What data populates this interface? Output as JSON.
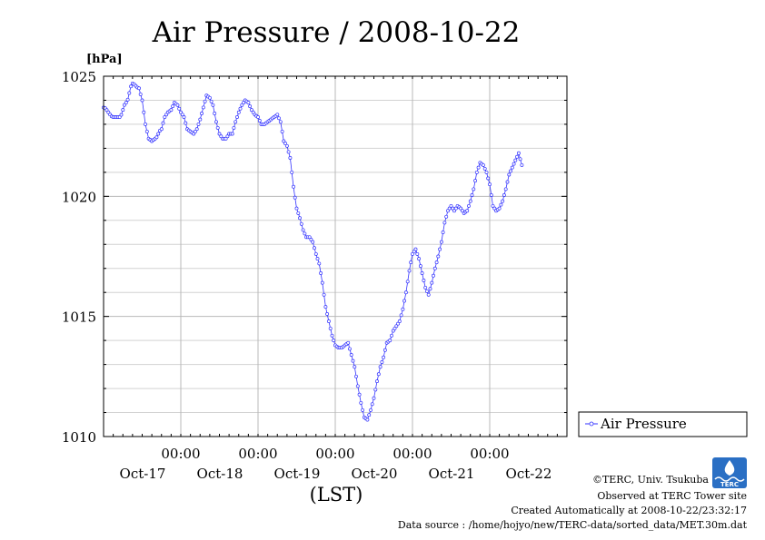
{
  "chart_data": {
    "type": "line",
    "title": "Air Pressure / 2008-10-22",
    "ylabel": "[hPa]",
    "xlabel": "(LST)",
    "ylim": [
      1010,
      1025
    ],
    "y_ticks": [
      "1010",
      "1015",
      "1020",
      "1025"
    ],
    "x_range_hours": [
      -4,
      140
    ],
    "x_ticks": [
      {
        "hour": 20,
        "time": "00:00",
        "date": "Oct-17"
      },
      {
        "hour": 44,
        "time": "00:00",
        "date": "Oct-18"
      },
      {
        "hour": 68,
        "time": "00:00",
        "date": "Oct-19"
      },
      {
        "hour": 92,
        "time": "00:00",
        "date": "Oct-20"
      },
      {
        "hour": 116,
        "time": "00:00",
        "date": "Oct-21"
      },
      {
        "hour": 140,
        "time": "",
        "date": "Oct-22"
      }
    ],
    "grid": true,
    "legend_position": "right",
    "series": [
      {
        "name": "Air Pressure",
        "color": "#3333ff",
        "points": [
          [
            -4,
            1023.7
          ],
          [
            -1,
            1023.3
          ],
          [
            1,
            1023.3
          ],
          [
            3,
            1023.9
          ],
          [
            5,
            1024.7
          ],
          [
            7,
            1024.5
          ],
          [
            8,
            1024.0
          ],
          [
            9,
            1023.0
          ],
          [
            10,
            1022.4
          ],
          [
            11,
            1022.3
          ],
          [
            12,
            1022.4
          ],
          [
            14,
            1022.8
          ],
          [
            15,
            1023.3
          ],
          [
            16,
            1023.5
          ],
          [
            17,
            1023.6
          ],
          [
            18,
            1023.9
          ],
          [
            19,
            1023.8
          ],
          [
            20,
            1023.5
          ],
          [
            21,
            1023.3
          ],
          [
            22,
            1022.8
          ],
          [
            23,
            1022.7
          ],
          [
            24,
            1022.6
          ],
          [
            25,
            1022.8
          ],
          [
            26,
            1023.2
          ],
          [
            27,
            1023.7
          ],
          [
            28,
            1024.2
          ],
          [
            29,
            1024.1
          ],
          [
            30,
            1023.8
          ],
          [
            31,
            1023.1
          ],
          [
            32,
            1022.6
          ],
          [
            33,
            1022.4
          ],
          [
            34,
            1022.4
          ],
          [
            35,
            1022.6
          ],
          [
            36,
            1022.6
          ],
          [
            37,
            1023.1
          ],
          [
            38,
            1023.5
          ],
          [
            39,
            1023.8
          ],
          [
            40,
            1024.0
          ],
          [
            41,
            1023.9
          ],
          [
            42,
            1023.6
          ],
          [
            43,
            1023.4
          ],
          [
            44,
            1023.3
          ],
          [
            45,
            1023.0
          ],
          [
            46,
            1023.0
          ],
          [
            47,
            1023.1
          ],
          [
            48,
            1023.2
          ],
          [
            49,
            1023.3
          ],
          [
            50,
            1023.4
          ],
          [
            51,
            1023.1
          ],
          [
            52,
            1022.3
          ],
          [
            53,
            1022.1
          ],
          [
            54,
            1021.6
          ],
          [
            55,
            1020.4
          ],
          [
            56,
            1019.5
          ],
          [
            57,
            1019.1
          ],
          [
            58,
            1018.6
          ],
          [
            59,
            1018.3
          ],
          [
            60,
            1018.3
          ],
          [
            61,
            1018.1
          ],
          [
            62,
            1017.6
          ],
          [
            63,
            1017.2
          ],
          [
            64,
            1016.4
          ],
          [
            65,
            1015.4
          ],
          [
            66,
            1014.8
          ],
          [
            67,
            1014.2
          ],
          [
            68,
            1013.8
          ],
          [
            69,
            1013.7
          ],
          [
            70,
            1013.7
          ],
          [
            71,
            1013.8
          ],
          [
            72,
            1013.9
          ],
          [
            73,
            1013.4
          ],
          [
            74,
            1012.9
          ],
          [
            75,
            1012.1
          ],
          [
            76,
            1011.4
          ],
          [
            77,
            1010.8
          ],
          [
            78,
            1010.7
          ],
          [
            79,
            1011.1
          ],
          [
            80,
            1011.6
          ],
          [
            81,
            1012.3
          ],
          [
            82,
            1012.9
          ],
          [
            83,
            1013.3
          ],
          [
            84,
            1013.9
          ],
          [
            85,
            1014.0
          ],
          [
            86,
            1014.4
          ],
          [
            87,
            1014.6
          ],
          [
            88,
            1014.8
          ],
          [
            89,
            1015.3
          ],
          [
            90,
            1016.0
          ],
          [
            91,
            1016.9
          ],
          [
            92,
            1017.6
          ],
          [
            93,
            1017.8
          ],
          [
            94,
            1017.4
          ],
          [
            95,
            1016.8
          ],
          [
            96,
            1016.2
          ],
          [
            97,
            1015.9
          ],
          [
            98,
            1016.4
          ],
          [
            99,
            1017.0
          ],
          [
            100,
            1017.5
          ],
          [
            101,
            1018.1
          ],
          [
            102,
            1018.9
          ],
          [
            103,
            1019.4
          ],
          [
            104,
            1019.6
          ],
          [
            105,
            1019.4
          ],
          [
            106,
            1019.6
          ],
          [
            107,
            1019.5
          ],
          [
            108,
            1019.3
          ],
          [
            109,
            1019.4
          ],
          [
            110,
            1019.8
          ],
          [
            111,
            1020.3
          ],
          [
            112,
            1021.0
          ],
          [
            113,
            1021.4
          ],
          [
            114,
            1021.3
          ],
          [
            115,
            1021.0
          ],
          [
            116,
            1020.5
          ],
          [
            117,
            1019.6
          ],
          [
            118,
            1019.4
          ],
          [
            119,
            1019.5
          ],
          [
            120,
            1019.8
          ],
          [
            121,
            1020.3
          ],
          [
            122,
            1020.9
          ],
          [
            123,
            1021.2
          ],
          [
            124,
            1021.5
          ],
          [
            125,
            1021.8
          ],
          [
            126,
            1021.3
          ]
        ]
      }
    ]
  },
  "credits": {
    "copyright": "©TERC, Univ. Tsukuba",
    "site": "Observed at TERC Tower site",
    "created": "Created Automatically at 2008-10-22/23:32:17",
    "source": "Data source : /home/hojyo/new/TERC-data/sorted_data/MET.30m.dat",
    "logo_text": "TERC"
  }
}
